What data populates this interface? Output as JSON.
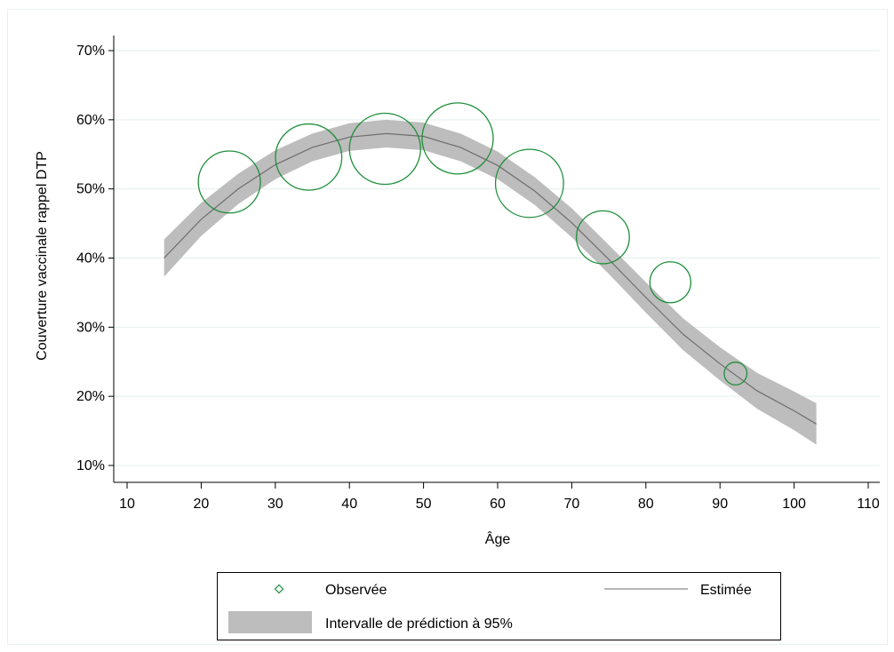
{
  "chart_data": {
    "type": "scatter",
    "xlabel": "Âge",
    "ylabel": "Couverture vaccinale rappel DTP",
    "xlim": [
      10,
      110
    ],
    "ylim": [
      10,
      70
    ],
    "x_ticks": [
      10,
      20,
      30,
      40,
      50,
      60,
      70,
      80,
      90,
      100,
      110
    ],
    "x_tick_labels": [
      "10",
      "20",
      "30",
      "40",
      "50",
      "60",
      "70",
      "80",
      "90",
      "100",
      "110"
    ],
    "y_ticks": [
      10,
      20,
      30,
      40,
      50,
      60,
      70
    ],
    "y_tick_labels": [
      "10%",
      "20%",
      "30%",
      "40%",
      "50%",
      "60%",
      "70%"
    ],
    "grid": "horizontal",
    "legend": {
      "position": "bottom",
      "observed_label": "Observée",
      "estimated_label": "Estimée",
      "interval_label": "Intervalle de prédiction à 95%"
    },
    "observed": {
      "x": [
        23.8,
        34.5,
        44.8,
        54.6,
        64.3,
        74.2,
        83.3,
        92.1
      ],
      "y": [
        51.0,
        54.6,
        55.8,
        57.3,
        50.8,
        43.0,
        36.5,
        23.3
      ],
      "relative_size": [
        0.85,
        0.92,
        1.0,
        1.0,
        0.95,
        0.7,
        0.5,
        0.2
      ]
    },
    "estimated": {
      "x": [
        15,
        20,
        25,
        30,
        35,
        40,
        45,
        50,
        55,
        60,
        65,
        70,
        75,
        80,
        85,
        90,
        95,
        100,
        103
      ],
      "y": [
        40.0,
        45.6,
        50.0,
        53.5,
        56.0,
        57.5,
        58.0,
        57.6,
        56.0,
        53.4,
        49.7,
        45.1,
        39.8,
        34.3,
        29.0,
        24.7,
        20.8,
        17.9,
        16.0
      ],
      "band_half_width": [
        2.7,
        2.4,
        2.2,
        2.1,
        2.0,
        2.0,
        2.0,
        2.0,
        2.0,
        2.0,
        2.0,
        2.1,
        2.1,
        2.2,
        2.3,
        2.4,
        2.6,
        2.8,
        3.0
      ]
    },
    "colors": {
      "observed": "#1f8f3a",
      "estimated": "#6e6e6e",
      "interval": "#bdbdbd",
      "grid": "#e4eeee",
      "axis": "#000000"
    }
  }
}
